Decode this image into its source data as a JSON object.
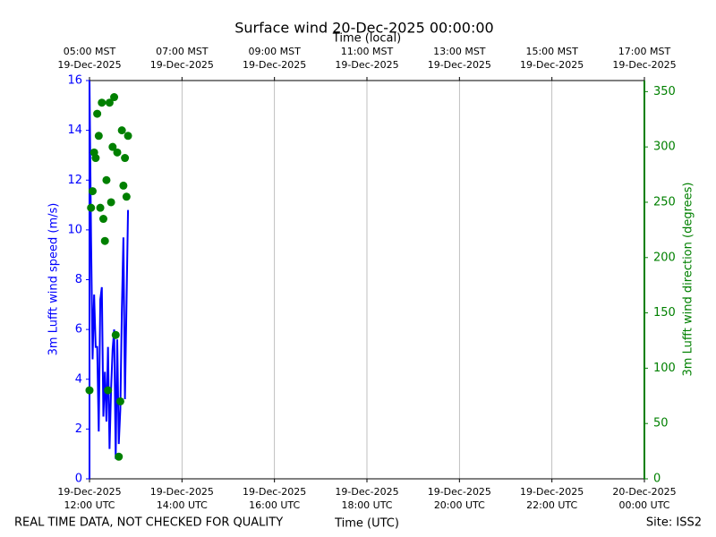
{
  "chart_data": {
    "type": "line",
    "title": "Surface wind 20-Dec-2025 00:00:00",
    "x2label": "Time (local)",
    "xlabel": "Time (UTC)",
    "ylabel": "3m Lufft wind speed (m/s)",
    "y2label": "3m Lufft wind direction (degrees)",
    "footer_left": "REAL TIME DATA, NOT CHECKED FOR QUALITY",
    "footer_right": "Site: ISS2",
    "x": [
      "2025-12-19T12:00Z",
      "2025-12-19T12:02Z",
      "2025-12-19T12:04Z",
      "2025-12-19T12:06Z",
      "2025-12-19T12:08Z",
      "2025-12-19T12:10Z",
      "2025-12-19T12:12Z",
      "2025-12-19T12:14Z",
      "2025-12-19T12:16Z",
      "2025-12-19T12:18Z",
      "2025-12-19T12:20Z",
      "2025-12-19T12:22Z",
      "2025-12-19T12:24Z",
      "2025-12-19T12:26Z",
      "2025-12-19T12:28Z",
      "2025-12-19T12:30Z",
      "2025-12-19T12:32Z",
      "2025-12-19T12:34Z",
      "2025-12-19T12:36Z",
      "2025-12-19T12:38Z",
      "2025-12-19T12:40Z",
      "2025-12-19T12:42Z",
      "2025-12-19T12:44Z",
      "2025-12-19T12:46Z",
      "2025-12-19T12:48Z",
      "2025-12-19T12:50Z"
    ],
    "series": [
      {
        "name": "3m Lufft wind speed",
        "type": "line",
        "color": "#0000ff",
        "values": [
          16,
          9.7,
          4.8,
          7.4,
          5.3,
          5.3,
          1.9,
          7.2,
          7.7,
          2.5,
          4.3,
          2.3,
          5.3,
          1.2,
          3.6,
          5.2,
          6.0,
          0.8,
          5.6,
          1.4,
          2.8,
          6.8,
          9.7,
          3.2,
          7.0,
          10.8
        ]
      },
      {
        "name": "3m Lufft wind direction",
        "type": "scatter",
        "color": "#008000",
        "axis": "y2",
        "values": [
          80,
          245,
          260,
          295,
          290,
          330,
          310,
          245,
          340,
          235,
          215,
          270,
          80,
          340,
          250,
          300,
          345,
          130,
          295,
          20,
          70,
          315,
          265,
          290,
          255,
          310
        ]
      }
    ],
    "xlim": [
      "2025-12-19T12:00Z",
      "2025-12-20T00:00Z"
    ],
    "xticks": [
      {
        "value": "2025-12-19T12:00Z",
        "label": "19-Dec-2025\n12:00 UTC"
      },
      {
        "value": "2025-12-19T14:00Z",
        "label": "19-Dec-2025\n14:00 UTC"
      },
      {
        "value": "2025-12-19T16:00Z",
        "label": "19-Dec-2025\n16:00 UTC"
      },
      {
        "value": "2025-12-19T18:00Z",
        "label": "19-Dec-2025\n18:00 UTC"
      },
      {
        "value": "2025-12-19T20:00Z",
        "label": "19-Dec-2025\n20:00 UTC"
      },
      {
        "value": "2025-12-19T22:00Z",
        "label": "19-Dec-2025\n22:00 UTC"
      },
      {
        "value": "2025-12-20T00:00Z",
        "label": "20-Dec-2025\n00:00 UTC"
      }
    ],
    "x2ticks": [
      {
        "value": "2025-12-19T12:00Z",
        "label": "05:00 MST\n19-Dec-2025"
      },
      {
        "value": "2025-12-19T14:00Z",
        "label": "07:00 MST\n19-Dec-2025"
      },
      {
        "value": "2025-12-19T16:00Z",
        "label": "09:00 MST\n19-Dec-2025"
      },
      {
        "value": "2025-12-19T18:00Z",
        "label": "11:00 MST\n19-Dec-2025"
      },
      {
        "value": "2025-12-19T20:00Z",
        "label": "13:00 MST\n19-Dec-2025"
      },
      {
        "value": "2025-12-19T22:00Z",
        "label": "15:00 MST\n19-Dec-2025"
      },
      {
        "value": "2025-12-20T00:00Z",
        "label": "17:00 MST\n19-Dec-2025"
      }
    ],
    "ylim": [
      0,
      16
    ],
    "yticks": [
      0,
      2,
      4,
      6,
      8,
      10,
      12,
      14,
      16
    ],
    "y2lim": [
      0,
      360
    ],
    "y2ticks": [
      0,
      50,
      100,
      150,
      200,
      250,
      300,
      350
    ],
    "grid": true
  }
}
